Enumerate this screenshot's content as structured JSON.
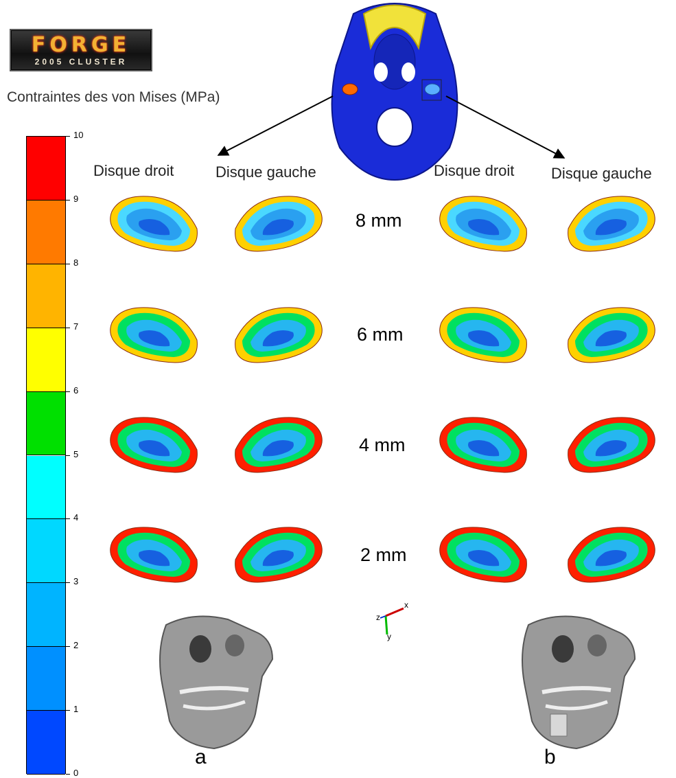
{
  "logo": {
    "title": "FORGE",
    "subtitle": "2005 CLUSTER"
  },
  "scale": {
    "title": "Contraintes des von Mises (MPa)",
    "ticks": [
      "10",
      "9",
      "8",
      "7",
      "6",
      "5",
      "4",
      "3",
      "2",
      "1",
      "0"
    ],
    "colors": [
      "#ff0000",
      "#ff7a00",
      "#ffb400",
      "#ffff00",
      "#00e000",
      "#00ffff",
      "#00d8ff",
      "#00b4ff",
      "#0090ff",
      "#0048ff",
      "#0000ff"
    ]
  },
  "headers": [
    "Disque droit",
    "Disque gauche",
    "Disque droit",
    "Disque gauche"
  ],
  "rows": [
    "8 mm",
    "6 mm",
    "4 mm",
    "2 mm"
  ],
  "panels": [
    "a",
    "b"
  ],
  "axes": {
    "x": "x",
    "y": "y",
    "z": "z"
  }
}
